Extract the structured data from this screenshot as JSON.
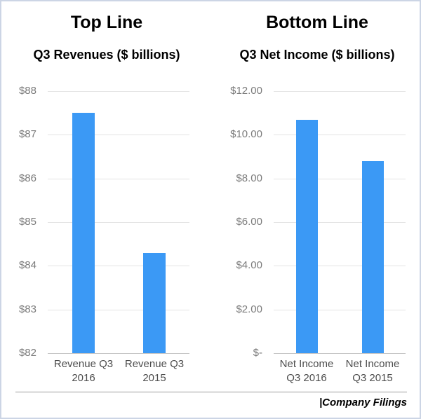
{
  "colors": {
    "bar_blue": "#3b99f5",
    "frame_border": "#ccd5e5",
    "gridline": "#e3e3e3",
    "axis_baseline": "#c6c6c6",
    "ytick_text": "#7b7b7b",
    "category_text": "#4c4c4c",
    "footer_divider": "#9a9a9a"
  },
  "footer": {
    "credit": "|Company Filings"
  },
  "chart_data": [
    {
      "type": "bar",
      "title": "Top Line",
      "subtitle": "Q3 Revenues ($ billions)",
      "categories": [
        "Revenue Q3 2016",
        "Revenue Q3 2015"
      ],
      "category_lines": [
        [
          "Revenue Q3",
          "2016"
        ],
        [
          "Revenue Q3",
          "2015"
        ]
      ],
      "values": [
        87.5,
        84.3
      ],
      "ylim": [
        82,
        88
      ],
      "yticks": [
        {
          "value": 88,
          "label": "$88"
        },
        {
          "value": 87,
          "label": "$87"
        },
        {
          "value": 86,
          "label": "$86"
        },
        {
          "value": 85,
          "label": "$85"
        },
        {
          "value": 84,
          "label": "$84"
        },
        {
          "value": 83,
          "label": "$83"
        },
        {
          "value": 82,
          "label": "$82"
        }
      ],
      "bar_color": "#3b99f5",
      "grid": true,
      "legend": "none"
    },
    {
      "type": "bar",
      "title": "Bottom Line",
      "subtitle": "Q3 Net Income ($ billions)",
      "categories": [
        "Net Income Q3 2016",
        "Net Income Q3 2015"
      ],
      "category_lines": [
        [
          "Net Income",
          "Q3 2016"
        ],
        [
          "Net Income",
          "Q3 2015"
        ]
      ],
      "values": [
        10.7,
        8.8
      ],
      "ylim": [
        0,
        12
      ],
      "yticks": [
        {
          "value": 12,
          "label": "$12.00"
        },
        {
          "value": 10,
          "label": "$10.00"
        },
        {
          "value": 8,
          "label": "$8.00"
        },
        {
          "value": 6,
          "label": "$6.00"
        },
        {
          "value": 4,
          "label": "$4.00"
        },
        {
          "value": 2,
          "label": "$2.00"
        },
        {
          "value": 0,
          "label": "$-"
        }
      ],
      "bar_color": "#3b99f5",
      "grid": true,
      "legend": "none"
    }
  ]
}
